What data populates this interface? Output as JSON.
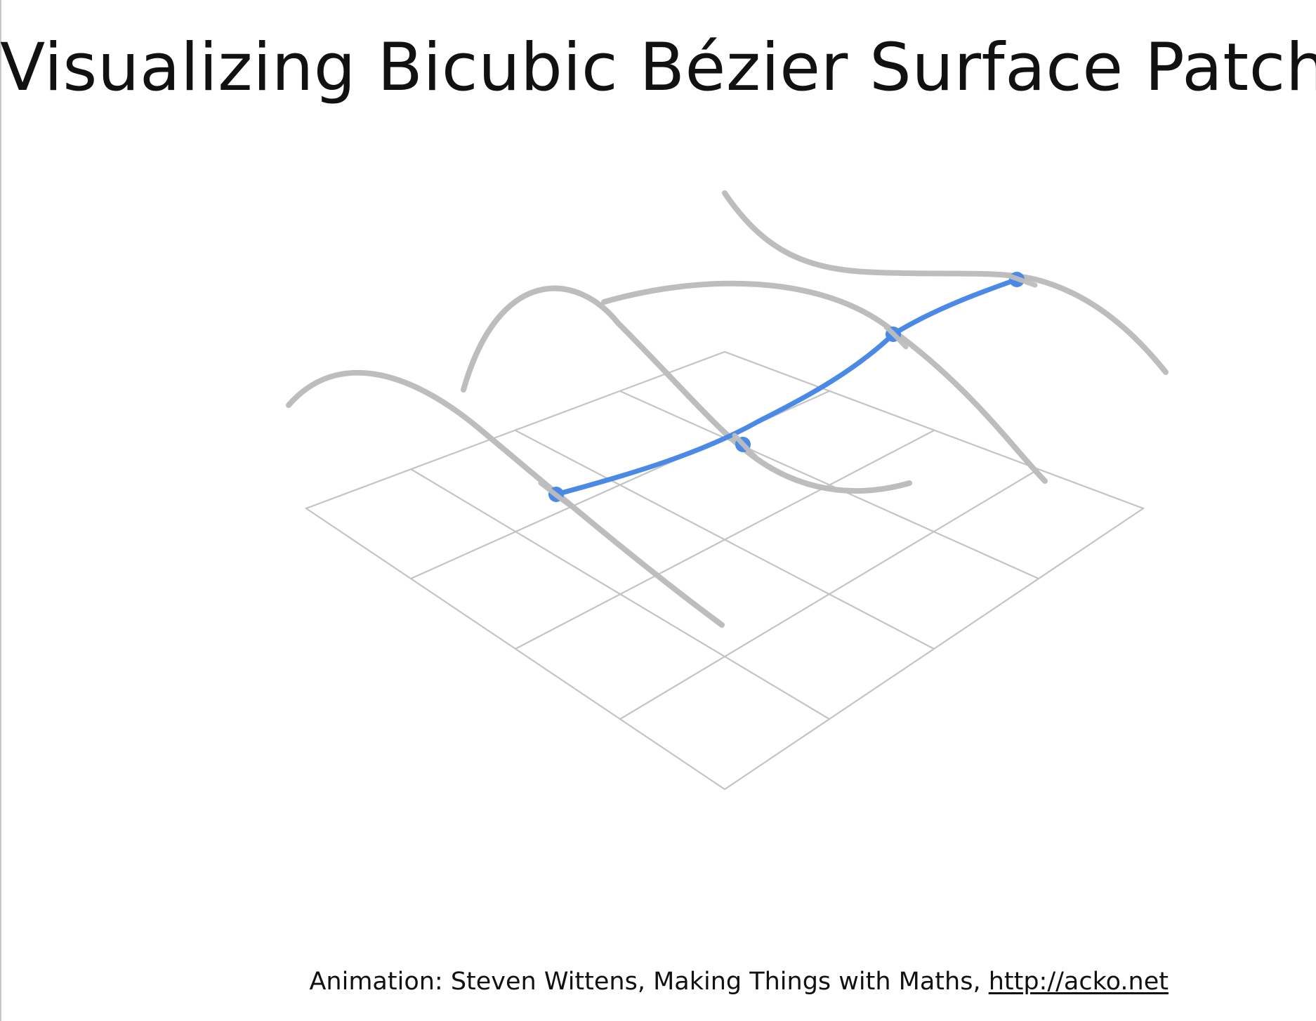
{
  "title": "Visualizing Bicubic Bézier Surface Patch",
  "caption": {
    "text": "Animation: Steven Wittens, Making Things with Maths, ",
    "link_text": "http://acko.net"
  },
  "colors": {
    "grid": "#c4c4c4",
    "curve": "#bdbdbd",
    "highlight": "#4a89e6",
    "text": "#111111"
  }
}
